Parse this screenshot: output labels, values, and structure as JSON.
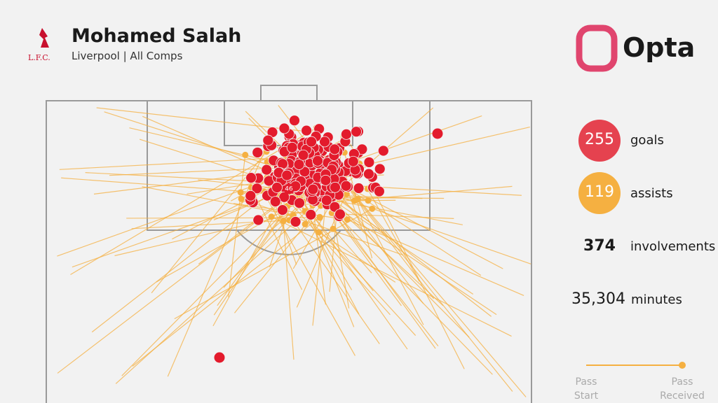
{
  "header": {
    "crest": "L.F.C.",
    "title": "Mohamed Salah",
    "subtitle": "Liverpool | All Comps",
    "brand": "Opta"
  },
  "pitch": {
    "marker": "46"
  },
  "stats": [
    {
      "value": "255",
      "label": "goals"
    },
    {
      "value": "119",
      "label": "assists"
    },
    {
      "value": "374",
      "label": "involvements"
    },
    {
      "value": "35,304",
      "label": "minutes"
    }
  ],
  "legend": {
    "start": "Pass Start",
    "end": "Pass Received"
  }
}
